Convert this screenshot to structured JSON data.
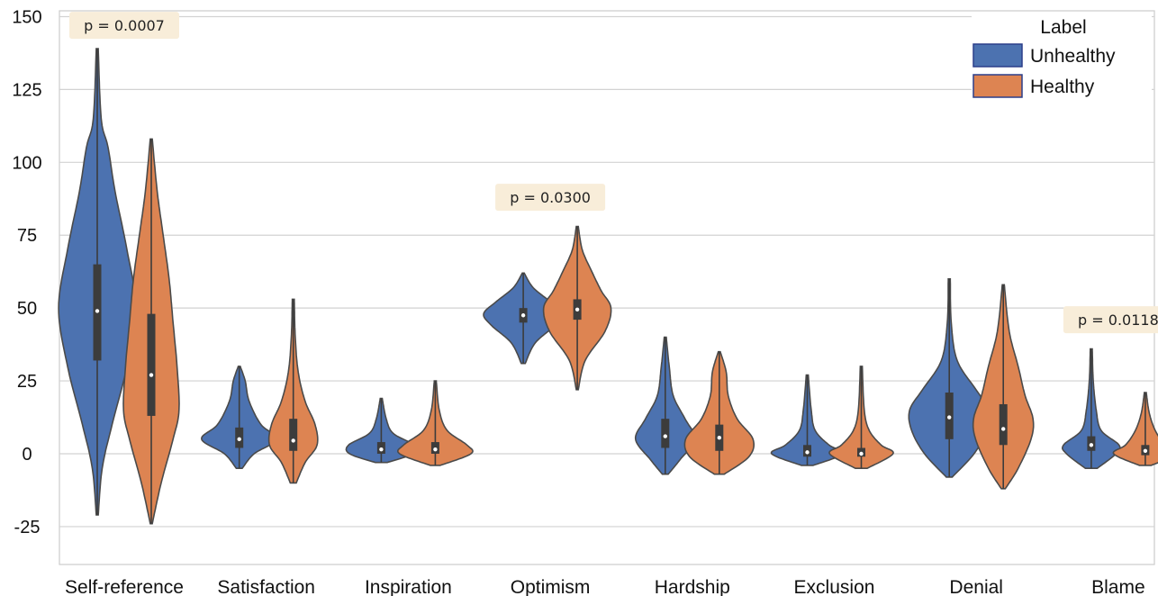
{
  "chart_data": {
    "type": "violin",
    "title": "",
    "xlabel": "",
    "ylabel": "",
    "ylim": [
      -38,
      152
    ],
    "yticks": [
      "150",
      "125",
      "100",
      "75",
      "50",
      "25",
      "0",
      "-25"
    ],
    "grid": "horizontal",
    "categories": [
      "Self-reference",
      "Satisfaction",
      "Inspiration",
      "Optimism",
      "Hardship",
      "Exclusion",
      "Denial",
      "Blame"
    ],
    "legend": {
      "title": "Label",
      "placement": "top-right",
      "entries": [
        {
          "name": "Unhealthy",
          "color": "#4c72b0"
        },
        {
          "name": "Healthy",
          "color": "#dd8452"
        }
      ]
    },
    "series": [
      {
        "name": "Unhealthy",
        "color": "#4c72b0",
        "violins": [
          {
            "min": -21,
            "max": 139,
            "median": 49,
            "q1": 32,
            "q3": 65,
            "profile": [
              [
                -21,
                0.01
              ],
              [
                -5,
                0.05
              ],
              [
                10,
                0.15
              ],
              [
                30,
                0.3
              ],
              [
                50,
                0.39
              ],
              [
                70,
                0.3
              ],
              [
                90,
                0.18
              ],
              [
                105,
                0.11
              ],
              [
                115,
                0.04
              ],
              [
                139,
                0.01
              ]
            ]
          },
          {
            "min": -5,
            "max": 30,
            "median": 5,
            "q1": 2,
            "q3": 9,
            "profile": [
              [
                -5,
                0.03
              ],
              [
                0,
                0.15
              ],
              [
                5,
                0.38
              ],
              [
                10,
                0.22
              ],
              [
                18,
                0.1
              ],
              [
                25,
                0.06
              ],
              [
                30,
                0.01
              ]
            ]
          },
          {
            "min": -3,
            "max": 19,
            "median": 1.5,
            "q1": 0,
            "q3": 4,
            "profile": [
              [
                -3,
                0.06
              ],
              [
                0,
                0.32
              ],
              [
                3,
                0.33
              ],
              [
                7,
                0.12
              ],
              [
                12,
                0.05
              ],
              [
                19,
                0.01
              ]
            ]
          },
          {
            "min": 31,
            "max": 62,
            "median": 47.5,
            "q1": 45,
            "q3": 50,
            "profile": [
              [
                31,
                0.02
              ],
              [
                38,
                0.12
              ],
              [
                44,
                0.32
              ],
              [
                48,
                0.4
              ],
              [
                52,
                0.28
              ],
              [
                57,
                0.1
              ],
              [
                62,
                0.01
              ]
            ]
          },
          {
            "min": -7,
            "max": 40,
            "median": 6,
            "q1": 2,
            "q3": 12,
            "profile": [
              [
                -7,
                0.03
              ],
              [
                -2,
                0.15
              ],
              [
                5,
                0.3
              ],
              [
                12,
                0.2
              ],
              [
                20,
                0.08
              ],
              [
                30,
                0.04
              ],
              [
                40,
                0.01
              ]
            ]
          },
          {
            "min": -4,
            "max": 27,
            "median": 0.5,
            "q1": -1,
            "q3": 3,
            "profile": [
              [
                -4,
                0.06
              ],
              [
                0,
                0.36
              ],
              [
                3,
                0.22
              ],
              [
                8,
                0.08
              ],
              [
                15,
                0.04
              ],
              [
                27,
                0.01
              ]
            ]
          },
          {
            "min": -8,
            "max": 60,
            "median": 12.5,
            "q1": 5,
            "q3": 21,
            "profile": [
              [
                -8,
                0.03
              ],
              [
                0,
                0.25
              ],
              [
                8,
                0.38
              ],
              [
                15,
                0.4
              ],
              [
                22,
                0.27
              ],
              [
                32,
                0.08
              ],
              [
                45,
                0.02
              ],
              [
                60,
                0.01
              ]
            ]
          },
          {
            "min": -5,
            "max": 36,
            "median": 3,
            "q1": 1,
            "q3": 6,
            "profile": [
              [
                -5,
                0.06
              ],
              [
                0,
                0.25
              ],
              [
                3,
                0.28
              ],
              [
                8,
                0.1
              ],
              [
                15,
                0.05
              ],
              [
                25,
                0.02
              ],
              [
                36,
                0.01
              ]
            ]
          }
        ]
      },
      {
        "name": "Healthy",
        "color": "#dd8452",
        "violins": [
          {
            "min": -24,
            "max": 108,
            "median": 27,
            "q1": 13,
            "q3": 48,
            "profile": [
              [
                -24,
                0.01
              ],
              [
                -10,
                0.1
              ],
              [
                5,
                0.22
              ],
              [
                15,
                0.28
              ],
              [
                30,
                0.26
              ],
              [
                45,
                0.22
              ],
              [
                60,
                0.18
              ],
              [
                75,
                0.12
              ],
              [
                90,
                0.06
              ],
              [
                108,
                0.01
              ]
            ]
          },
          {
            "min": -10,
            "max": 53,
            "median": 4.5,
            "q1": 1,
            "q3": 12,
            "profile": [
              [
                -10,
                0.03
              ],
              [
                -3,
                0.12
              ],
              [
                3,
                0.24
              ],
              [
                10,
                0.22
              ],
              [
                18,
                0.12
              ],
              [
                28,
                0.05
              ],
              [
                40,
                0.02
              ],
              [
                53,
                0.01
              ]
            ]
          },
          {
            "min": -4,
            "max": 25,
            "median": 1.5,
            "q1": 0,
            "q3": 4,
            "profile": [
              [
                -4,
                0.05
              ],
              [
                0,
                0.36
              ],
              [
                3,
                0.32
              ],
              [
                8,
                0.12
              ],
              [
                15,
                0.04
              ],
              [
                25,
                0.01
              ]
            ]
          },
          {
            "min": 22,
            "max": 78,
            "median": 49.5,
            "q1": 46,
            "q3": 53,
            "profile": [
              [
                22,
                0.01
              ],
              [
                32,
                0.08
              ],
              [
                42,
                0.28
              ],
              [
                50,
                0.34
              ],
              [
                56,
                0.24
              ],
              [
                63,
                0.14
              ],
              [
                70,
                0.05
              ],
              [
                78,
                0.01
              ]
            ]
          },
          {
            "min": -7,
            "max": 35,
            "median": 5.5,
            "q1": 1,
            "q3": 10,
            "profile": [
              [
                -7,
                0.05
              ],
              [
                -1,
                0.3
              ],
              [
                5,
                0.34
              ],
              [
                12,
                0.18
              ],
              [
                20,
                0.09
              ],
              [
                28,
                0.07
              ],
              [
                35,
                0.01
              ]
            ]
          },
          {
            "min": -5,
            "max": 30,
            "median": 0,
            "q1": -1,
            "q3": 2,
            "profile": [
              [
                -5,
                0.06
              ],
              [
                0,
                0.32
              ],
              [
                3,
                0.2
              ],
              [
                8,
                0.08
              ],
              [
                15,
                0.03
              ],
              [
                30,
                0.01
              ]
            ]
          },
          {
            "min": -12,
            "max": 58,
            "median": 8.5,
            "q1": 3,
            "q3": 17,
            "profile": [
              [
                -12,
                0.02
              ],
              [
                -5,
                0.15
              ],
              [
                5,
                0.28
              ],
              [
                12,
                0.3
              ],
              [
                20,
                0.22
              ],
              [
                30,
                0.15
              ],
              [
                42,
                0.06
              ],
              [
                58,
                0.01
              ]
            ]
          },
          {
            "min": -4,
            "max": 21,
            "median": 1,
            "q1": -0.5,
            "q3": 3,
            "profile": [
              [
                -4,
                0.06
              ],
              [
                0,
                0.32
              ],
              [
                3,
                0.2
              ],
              [
                8,
                0.1
              ],
              [
                14,
                0.04
              ],
              [
                21,
                0.01
              ]
            ]
          }
        ]
      }
    ],
    "annotations": [
      {
        "text": "p = 0.0007",
        "category": "Self-reference",
        "y": 147
      },
      {
        "text": "p = 0.0300",
        "category": "Optimism",
        "y": 88
      },
      {
        "text": "p = 0.0118",
        "category": "Blame",
        "y": 46
      }
    ]
  }
}
